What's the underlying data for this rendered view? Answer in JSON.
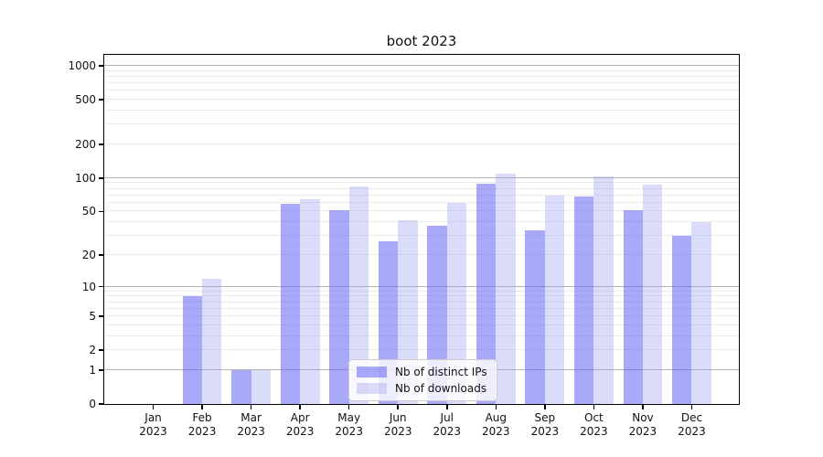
{
  "title": "boot 2023",
  "chart_data": {
    "type": "bar",
    "title": "boot 2023",
    "categories": [
      "Jan",
      "Feb",
      "Mar",
      "Apr",
      "May",
      "Jun",
      "Jul",
      "Aug",
      "Sep",
      "Oct",
      "Nov",
      "Dec"
    ],
    "category_year": "2023",
    "series": [
      {
        "name": "Nb of distinct IPs",
        "color": "#a8a8fa",
        "rgba": "rgba(98,98,246,0.55)",
        "values": [
          0,
          8,
          1,
          59,
          51,
          27,
          37,
          89,
          34,
          69,
          51,
          30
        ]
      },
      {
        "name": "Nb of downloads",
        "color": "#dbdbfa",
        "rgba": "rgba(152,152,241,0.35)",
        "values": [
          0,
          12,
          1,
          65,
          84,
          42,
          60,
          110,
          70,
          103,
          87,
          40
        ]
      }
    ],
    "yscale": "log1p",
    "ylim": [
      0,
      1300
    ],
    "y_ticks": [
      0,
      1,
      2,
      5,
      10,
      20,
      50,
      100,
      200,
      500,
      1000
    ],
    "y_major_gridlines": [
      1,
      10,
      100,
      1000
    ],
    "grid": true,
    "legend_position": "lower center",
    "colors": {
      "major_grid": "#b3b3b3",
      "minor_grid": "#ececec",
      "spine": "#000000",
      "background": "#ffffff"
    }
  }
}
